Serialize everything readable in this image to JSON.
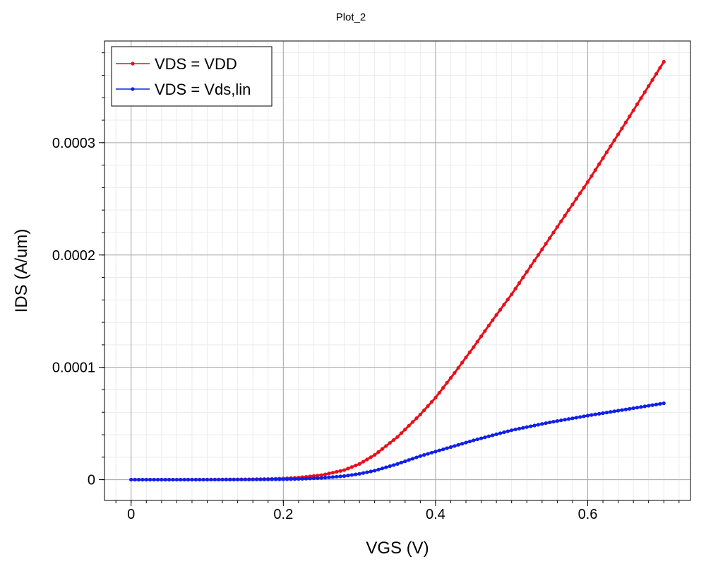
{
  "chart_data": {
    "type": "line",
    "title": "Plot_2",
    "xlabel": "VGS (V)",
    "ylabel": "IDS (A/um)",
    "xlim": [
      -0.035,
      0.735
    ],
    "ylim": [
      -1.85e-05,
      0.0003905
    ],
    "x_ticks": [
      {
        "value": 0,
        "label": "0"
      },
      {
        "value": 0.2,
        "label": "0.2"
      },
      {
        "value": 0.4,
        "label": "0.4"
      },
      {
        "value": 0.6,
        "label": "0.6"
      }
    ],
    "y_ticks": [
      {
        "value": 0,
        "label": "0"
      },
      {
        "value": 0.0001,
        "label": "0.0001"
      },
      {
        "value": 0.0002,
        "label": "0.0002"
      },
      {
        "value": 0.0003,
        "label": "0.0003"
      }
    ],
    "x_minor_step": 0.02,
    "y_minor_step": 2e-05,
    "grid": true,
    "legend_position": "top-left",
    "series": [
      {
        "name": "VDS = VDD",
        "color": "#e8101a",
        "x": [
          0,
          0.05,
          0.1,
          0.15,
          0.18,
          0.2,
          0.22,
          0.25,
          0.28,
          0.3,
          0.32,
          0.35,
          0.38,
          0.4,
          0.425,
          0.45,
          0.475,
          0.5,
          0.55,
          0.6,
          0.65,
          0.7
        ],
        "y": [
          0,
          0,
          1e-07,
          3e-07,
          6e-07,
          1e-06,
          1.8e-06,
          4e-06,
          8.5e-06,
          1.4e-05,
          2.2e-05,
          3.8e-05,
          5.8e-05,
          7.3e-05,
          9.5e-05,
          0.000118,
          0.000142,
          0.000165,
          0.000215,
          0.000265,
          0.000318,
          0.000372
        ]
      },
      {
        "name": "VDS = Vds,lin",
        "color": "#1020e8",
        "x": [
          0,
          0.05,
          0.1,
          0.15,
          0.2,
          0.22,
          0.25,
          0.28,
          0.3,
          0.32,
          0.35,
          0.38,
          0.4,
          0.45,
          0.5,
          0.55,
          0.6,
          0.65,
          0.7
        ],
        "y": [
          0,
          0,
          0,
          1e-07,
          3e-07,
          6e-07,
          1.5e-06,
          3.2e-06,
          5.2e-06,
          8e-06,
          1.4e-05,
          2.1e-05,
          2.5e-05,
          3.5e-05,
          4.4e-05,
          5.1e-05,
          5.7e-05,
          6.25e-05,
          6.8e-05
        ]
      }
    ]
  }
}
